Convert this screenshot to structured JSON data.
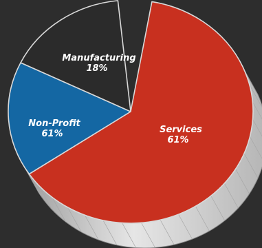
{
  "chart_data": {
    "type": "pie",
    "title": "",
    "slices": [
      {
        "name": "Services",
        "value_label": "61%",
        "value": 61,
        "color": "#c8301f"
      },
      {
        "name": "Non-Profit",
        "value_label": "61%",
        "value": 61,
        "color": "#1467a3"
      },
      {
        "name": "Manufacturing",
        "value_label": "18%",
        "value": 18,
        "color": "#2b2b2b"
      }
    ],
    "style": {
      "three_d": true,
      "side_color": "#cfcfcf",
      "outline_color": "#d9d9d9"
    }
  }
}
